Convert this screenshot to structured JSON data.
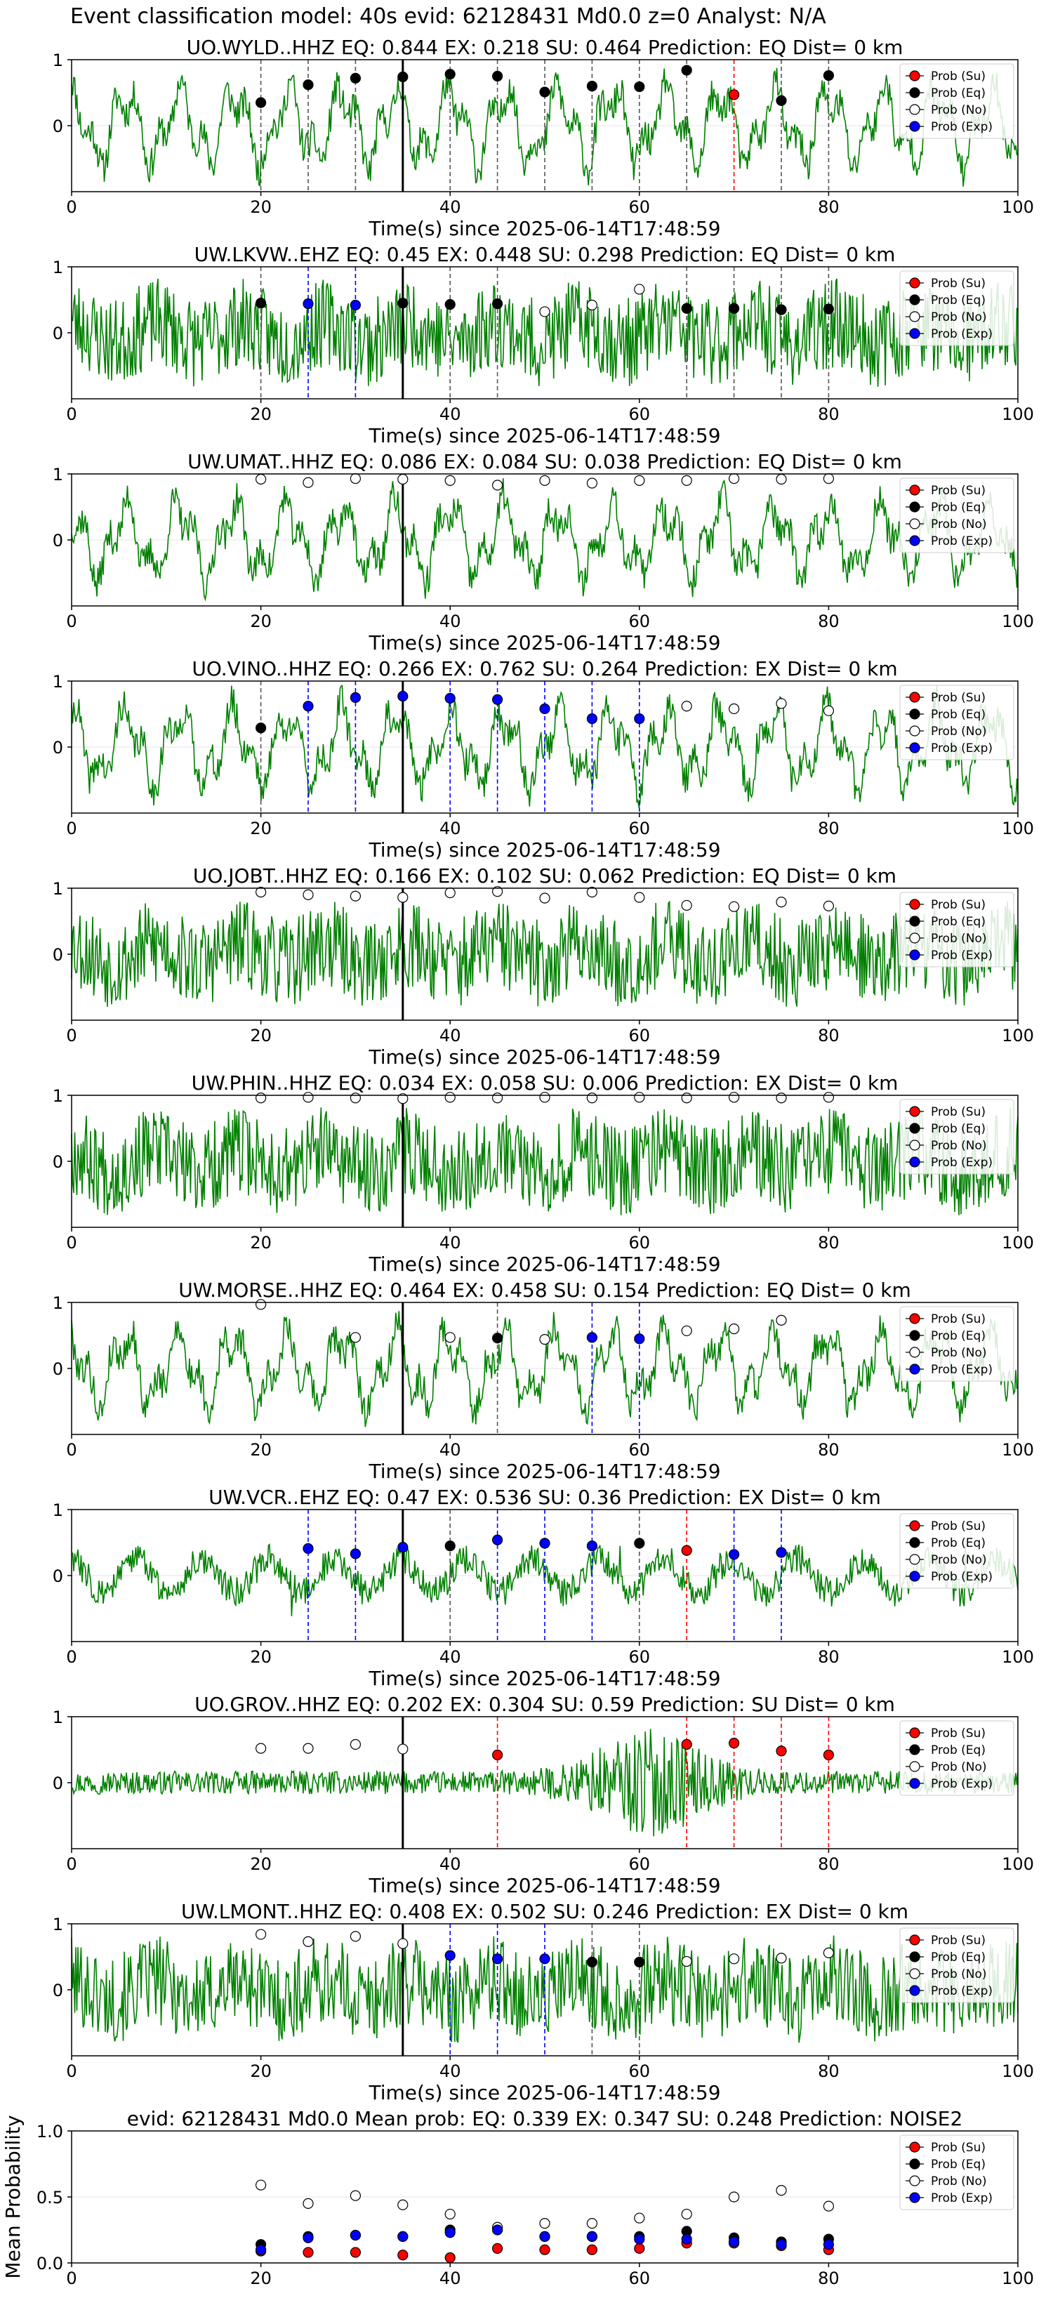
{
  "figure_title": "Event classification model: 40s evid: 62128431 Md0.0 z=0 Analyst: N/A",
  "colors": {
    "trace": "#008000",
    "eq": "#000000",
    "su": "#ff0000",
    "exp": "#0000ff",
    "no": "#ffffff",
    "pick": "#000000"
  },
  "legend": [
    "Prob (Su)",
    "Prob (Eq)",
    "Prob (No)",
    "Prob (Exp)"
  ],
  "chart_data": [
    {
      "type": "scatter",
      "title": "UO.WYLD..HHZ   EQ: 0.844  EX: 0.218  SU: 0.464   Prediction: EQ    Dist= 0 km",
      "xlabel": "Time(s) since 2025-06-14T17:48:59",
      "xlim": [
        0,
        100
      ],
      "ylim": [
        -1,
        1
      ],
      "xticks": [
        "0",
        "20",
        "40",
        "60",
        "80",
        "100"
      ],
      "yticks": [
        "0",
        "1"
      ],
      "pick_time": 35,
      "trace_seed": 11,
      "trace_style": "smooth",
      "points": [
        {
          "x": 20,
          "y": 0.35,
          "cls": "eq"
        },
        {
          "x": 25,
          "y": 0.62,
          "cls": "eq"
        },
        {
          "x": 30,
          "y": 0.72,
          "cls": "eq"
        },
        {
          "x": 35,
          "y": 0.74,
          "cls": "eq"
        },
        {
          "x": 40,
          "y": 0.78,
          "cls": "eq"
        },
        {
          "x": 45,
          "y": 0.75,
          "cls": "eq"
        },
        {
          "x": 50,
          "y": 0.51,
          "cls": "eq"
        },
        {
          "x": 55,
          "y": 0.6,
          "cls": "eq"
        },
        {
          "x": 60,
          "y": 0.59,
          "cls": "eq"
        },
        {
          "x": 65,
          "y": 0.84,
          "cls": "eq"
        },
        {
          "x": 70,
          "y": 0.47,
          "cls": "su"
        },
        {
          "x": 75,
          "y": 0.38,
          "cls": "eq"
        },
        {
          "x": 80,
          "y": 0.76,
          "cls": "eq"
        }
      ]
    },
    {
      "type": "scatter",
      "title": "UW.LKVW..EHZ   EQ: 0.45  EX: 0.448  SU: 0.298   Prediction: EQ    Dist= 0 km",
      "xlabel": "Time(s) since 2025-06-14T17:48:59",
      "xlim": [
        0,
        100
      ],
      "ylim": [
        -1,
        1
      ],
      "xticks": [
        "0",
        "20",
        "40",
        "60",
        "80",
        "100"
      ],
      "yticks": [
        "0",
        "1"
      ],
      "pick_time": 35,
      "trace_seed": 23,
      "trace_style": "noisy",
      "points": [
        {
          "x": 20,
          "y": 0.45,
          "cls": "eq"
        },
        {
          "x": 25,
          "y": 0.44,
          "cls": "exp"
        },
        {
          "x": 30,
          "y": 0.42,
          "cls": "exp"
        },
        {
          "x": 35,
          "y": 0.45,
          "cls": "eq"
        },
        {
          "x": 40,
          "y": 0.43,
          "cls": "eq"
        },
        {
          "x": 45,
          "y": 0.44,
          "cls": "eq"
        },
        {
          "x": 50,
          "y": 0.32,
          "cls": "no"
        },
        {
          "x": 55,
          "y": 0.42,
          "cls": "no"
        },
        {
          "x": 60,
          "y": 0.66,
          "cls": "no"
        },
        {
          "x": 65,
          "y": 0.37,
          "cls": "eq"
        },
        {
          "x": 70,
          "y": 0.37,
          "cls": "eq"
        },
        {
          "x": 75,
          "y": 0.35,
          "cls": "eq"
        },
        {
          "x": 80,
          "y": 0.36,
          "cls": "eq"
        }
      ]
    },
    {
      "type": "scatter",
      "title": "UW.UMAT..HHZ   EQ: 0.086  EX: 0.084  SU: 0.038   Prediction: EQ    Dist= 0 km",
      "xlabel": "Time(s) since 2025-06-14T17:48:59",
      "xlim": [
        0,
        100
      ],
      "ylim": [
        -1,
        1
      ],
      "xticks": [
        "0",
        "20",
        "40",
        "60",
        "80",
        "100"
      ],
      "yticks": [
        "0",
        "1"
      ],
      "pick_time": 35,
      "trace_seed": 37,
      "trace_style": "smooth",
      "points": [
        {
          "x": 20,
          "y": 0.92,
          "cls": "no"
        },
        {
          "x": 25,
          "y": 0.87,
          "cls": "no"
        },
        {
          "x": 30,
          "y": 0.93,
          "cls": "no"
        },
        {
          "x": 35,
          "y": 0.92,
          "cls": "no"
        },
        {
          "x": 40,
          "y": 0.9,
          "cls": "no"
        },
        {
          "x": 45,
          "y": 0.83,
          "cls": "no"
        },
        {
          "x": 50,
          "y": 0.9,
          "cls": "no"
        },
        {
          "x": 55,
          "y": 0.86,
          "cls": "no"
        },
        {
          "x": 60,
          "y": 0.9,
          "cls": "no"
        },
        {
          "x": 65,
          "y": 0.9,
          "cls": "no"
        },
        {
          "x": 70,
          "y": 0.93,
          "cls": "no"
        },
        {
          "x": 75,
          "y": 0.92,
          "cls": "no"
        },
        {
          "x": 80,
          "y": 0.93,
          "cls": "no"
        }
      ]
    },
    {
      "type": "scatter",
      "title": "UO.VINO..HHZ   EQ: 0.266  EX: 0.762  SU: 0.264   Prediction: EX    Dist= 0 km",
      "xlabel": "Time(s) since 2025-06-14T17:48:59",
      "xlim": [
        0,
        100
      ],
      "ylim": [
        -1,
        1
      ],
      "xticks": [
        "0",
        "20",
        "40",
        "60",
        "80",
        "100"
      ],
      "yticks": [
        "0",
        "1"
      ],
      "pick_time": 35,
      "trace_seed": 41,
      "trace_style": "smooth",
      "points": [
        {
          "x": 20,
          "y": 0.29,
          "cls": "eq"
        },
        {
          "x": 25,
          "y": 0.62,
          "cls": "exp"
        },
        {
          "x": 30,
          "y": 0.75,
          "cls": "exp"
        },
        {
          "x": 35,
          "y": 0.77,
          "cls": "exp"
        },
        {
          "x": 40,
          "y": 0.74,
          "cls": "exp"
        },
        {
          "x": 45,
          "y": 0.72,
          "cls": "exp"
        },
        {
          "x": 50,
          "y": 0.58,
          "cls": "exp"
        },
        {
          "x": 55,
          "y": 0.43,
          "cls": "exp"
        },
        {
          "x": 60,
          "y": 0.43,
          "cls": "exp"
        },
        {
          "x": 65,
          "y": 0.62,
          "cls": "no"
        },
        {
          "x": 70,
          "y": 0.58,
          "cls": "no"
        },
        {
          "x": 75,
          "y": 0.66,
          "cls": "no"
        },
        {
          "x": 80,
          "y": 0.55,
          "cls": "no"
        }
      ]
    },
    {
      "type": "scatter",
      "title": "UO.JOBT..HHZ   EQ: 0.166  EX: 0.102  SU: 0.062   Prediction: EQ    Dist= 0 km",
      "xlabel": "Time(s) since 2025-06-14T17:48:59",
      "xlim": [
        0,
        100
      ],
      "ylim": [
        -1,
        1
      ],
      "xticks": [
        "0",
        "20",
        "40",
        "60",
        "80",
        "100"
      ],
      "yticks": [
        "0",
        "1"
      ],
      "pick_time": 35,
      "trace_seed": 53,
      "trace_style": "noisy",
      "points": [
        {
          "x": 20,
          "y": 0.94,
          "cls": "no"
        },
        {
          "x": 25,
          "y": 0.9,
          "cls": "no"
        },
        {
          "x": 30,
          "y": 0.88,
          "cls": "no"
        },
        {
          "x": 35,
          "y": 0.86,
          "cls": "no"
        },
        {
          "x": 40,
          "y": 0.93,
          "cls": "no"
        },
        {
          "x": 45,
          "y": 0.95,
          "cls": "no"
        },
        {
          "x": 50,
          "y": 0.85,
          "cls": "no"
        },
        {
          "x": 55,
          "y": 0.94,
          "cls": "no"
        },
        {
          "x": 60,
          "y": 0.86,
          "cls": "no"
        },
        {
          "x": 65,
          "y": 0.74,
          "cls": "no"
        },
        {
          "x": 70,
          "y": 0.72,
          "cls": "no"
        },
        {
          "x": 75,
          "y": 0.79,
          "cls": "no"
        },
        {
          "x": 80,
          "y": 0.73,
          "cls": "no"
        }
      ]
    },
    {
      "type": "scatter",
      "title": "UW.PHIN..HHZ   EQ: 0.034  EX: 0.058  SU: 0.006   Prediction: EX    Dist= 0 km",
      "xlabel": "Time(s) since 2025-06-14T17:48:59",
      "xlim": [
        0,
        100
      ],
      "ylim": [
        -1,
        1
      ],
      "xticks": [
        "0",
        "20",
        "40",
        "60",
        "80",
        "100"
      ],
      "yticks": [
        "0",
        "1"
      ],
      "pick_time": 35,
      "trace_seed": 67,
      "trace_style": "noisy",
      "points": [
        {
          "x": 20,
          "y": 0.96,
          "cls": "no"
        },
        {
          "x": 25,
          "y": 0.97,
          "cls": "no"
        },
        {
          "x": 30,
          "y": 0.96,
          "cls": "no"
        },
        {
          "x": 35,
          "y": 0.95,
          "cls": "no"
        },
        {
          "x": 40,
          "y": 0.97,
          "cls": "no"
        },
        {
          "x": 45,
          "y": 0.96,
          "cls": "no"
        },
        {
          "x": 50,
          "y": 0.97,
          "cls": "no"
        },
        {
          "x": 55,
          "y": 0.96,
          "cls": "no"
        },
        {
          "x": 60,
          "y": 0.97,
          "cls": "no"
        },
        {
          "x": 65,
          "y": 0.96,
          "cls": "no"
        },
        {
          "x": 70,
          "y": 0.97,
          "cls": "no"
        },
        {
          "x": 75,
          "y": 0.96,
          "cls": "no"
        },
        {
          "x": 80,
          "y": 0.97,
          "cls": "no"
        }
      ]
    },
    {
      "type": "scatter",
      "title": "UW.MORSE..HHZ   EQ: 0.464  EX: 0.458  SU: 0.154   Prediction: EQ    Dist= 0 km",
      "xlabel": "Time(s) since 2025-06-14T17:48:59",
      "xlim": [
        0,
        100
      ],
      "ylim": [
        -1,
        1
      ],
      "xticks": [
        "0",
        "20",
        "40",
        "60",
        "80",
        "100"
      ],
      "yticks": [
        "0",
        "1"
      ],
      "pick_time": 35,
      "trace_seed": 79,
      "trace_style": "smooth",
      "points": [
        {
          "x": 20,
          "y": 0.97,
          "cls": "no"
        },
        {
          "x": 30,
          "y": 0.47,
          "cls": "no"
        },
        {
          "x": 40,
          "y": 0.47,
          "cls": "no"
        },
        {
          "x": 45,
          "y": 0.46,
          "cls": "eq"
        },
        {
          "x": 50,
          "y": 0.44,
          "cls": "no"
        },
        {
          "x": 55,
          "y": 0.47,
          "cls": "exp"
        },
        {
          "x": 60,
          "y": 0.45,
          "cls": "exp"
        },
        {
          "x": 65,
          "y": 0.57,
          "cls": "no"
        },
        {
          "x": 70,
          "y": 0.6,
          "cls": "no"
        },
        {
          "x": 75,
          "y": 0.73,
          "cls": "no"
        }
      ]
    },
    {
      "type": "scatter",
      "title": "UW.VCR..EHZ   EQ: 0.47  EX: 0.536  SU: 0.36   Prediction: EX    Dist= 0 km",
      "xlabel": "Time(s) since 2025-06-14T17:48:59",
      "xlim": [
        0,
        100
      ],
      "ylim": [
        -1,
        1
      ],
      "xticks": [
        "0",
        "20",
        "40",
        "60",
        "80",
        "100"
      ],
      "yticks": [
        "0",
        "1"
      ],
      "pick_time": 35,
      "trace_seed": 83,
      "trace_style": "spiky",
      "points": [
        {
          "x": 25,
          "y": 0.41,
          "cls": "exp"
        },
        {
          "x": 30,
          "y": 0.33,
          "cls": "exp"
        },
        {
          "x": 35,
          "y": 0.43,
          "cls": "exp"
        },
        {
          "x": 40,
          "y": 0.45,
          "cls": "eq"
        },
        {
          "x": 45,
          "y": 0.54,
          "cls": "exp"
        },
        {
          "x": 50,
          "y": 0.49,
          "cls": "exp"
        },
        {
          "x": 55,
          "y": 0.45,
          "cls": "exp"
        },
        {
          "x": 60,
          "y": 0.49,
          "cls": "eq"
        },
        {
          "x": 65,
          "y": 0.38,
          "cls": "su"
        },
        {
          "x": 70,
          "y": 0.32,
          "cls": "exp"
        },
        {
          "x": 75,
          "y": 0.35,
          "cls": "exp"
        }
      ]
    },
    {
      "type": "scatter",
      "title": "UO.GROV..HHZ   EQ: 0.202  EX: 0.304  SU: 0.59   Prediction: SU    Dist= 0 km",
      "xlabel": "Time(s) since 2025-06-14T17:48:59",
      "xlim": [
        0,
        100
      ],
      "ylim": [
        -1,
        1
      ],
      "xticks": [
        "0",
        "20",
        "40",
        "60",
        "80",
        "100"
      ],
      "yticks": [
        "0",
        "1"
      ],
      "pick_time": 35,
      "trace_seed": 97,
      "trace_style": "burst",
      "points": [
        {
          "x": 20,
          "y": 0.52,
          "cls": "no"
        },
        {
          "x": 25,
          "y": 0.52,
          "cls": "no"
        },
        {
          "x": 30,
          "y": 0.58,
          "cls": "no"
        },
        {
          "x": 35,
          "y": 0.51,
          "cls": "no"
        },
        {
          "x": 45,
          "y": 0.42,
          "cls": "su"
        },
        {
          "x": 65,
          "y": 0.58,
          "cls": "su"
        },
        {
          "x": 70,
          "y": 0.6,
          "cls": "su"
        },
        {
          "x": 75,
          "y": 0.48,
          "cls": "su"
        },
        {
          "x": 80,
          "y": 0.42,
          "cls": "su"
        }
      ]
    },
    {
      "type": "scatter",
      "title": "UW.LMONT..HHZ   EQ: 0.408  EX: 0.502  SU: 0.246   Prediction: EX    Dist= 0 km",
      "xlabel": "Time(s) since 2025-06-14T17:48:59",
      "xlim": [
        0,
        100
      ],
      "ylim": [
        -1,
        1
      ],
      "xticks": [
        "0",
        "20",
        "40",
        "60",
        "80",
        "100"
      ],
      "yticks": [
        "0",
        "1"
      ],
      "pick_time": 35,
      "trace_seed": 101,
      "trace_style": "noisy",
      "points": [
        {
          "x": 20,
          "y": 0.84,
          "cls": "no"
        },
        {
          "x": 25,
          "y": 0.73,
          "cls": "no"
        },
        {
          "x": 30,
          "y": 0.81,
          "cls": "no"
        },
        {
          "x": 35,
          "y": 0.7,
          "cls": "no"
        },
        {
          "x": 40,
          "y": 0.52,
          "cls": "exp"
        },
        {
          "x": 45,
          "y": 0.47,
          "cls": "exp"
        },
        {
          "x": 50,
          "y": 0.47,
          "cls": "exp"
        },
        {
          "x": 55,
          "y": 0.42,
          "cls": "eq"
        },
        {
          "x": 60,
          "y": 0.42,
          "cls": "eq"
        },
        {
          "x": 65,
          "y": 0.43,
          "cls": "no"
        },
        {
          "x": 70,
          "y": 0.47,
          "cls": "no"
        },
        {
          "x": 75,
          "y": 0.48,
          "cls": "no"
        },
        {
          "x": 80,
          "y": 0.56,
          "cls": "no"
        }
      ]
    },
    {
      "type": "scatter",
      "title": "evid: 62128431  Md0.0   Mean prob:   EQ: 0.339  EX: 0.347  SU: 0.248   Prediction: NOISE2",
      "ylabel": "Mean Probability",
      "xlim": [
        0,
        100
      ],
      "ylim": [
        0,
        1
      ],
      "xticks": [
        "0",
        "20",
        "40",
        "60",
        "80",
        "100"
      ],
      "yticks": [
        "0.0",
        "0.5",
        "1.0"
      ],
      "series": [
        {
          "name": "Prob (Su)",
          "cls": "su",
          "x": [
            20,
            25,
            30,
            35,
            40,
            45,
            50,
            55,
            60,
            65,
            70,
            75,
            80
          ],
          "y": [
            0.09,
            0.08,
            0.08,
            0.06,
            0.04,
            0.11,
            0.1,
            0.1,
            0.11,
            0.15,
            0.15,
            0.13,
            0.1
          ]
        },
        {
          "name": "Prob (Eq)",
          "cls": "eq",
          "x": [
            20,
            25,
            30,
            35,
            40,
            45,
            50,
            55,
            60,
            65,
            70,
            75,
            80
          ],
          "y": [
            0.14,
            0.2,
            0.21,
            0.2,
            0.25,
            0.26,
            0.2,
            0.2,
            0.2,
            0.24,
            0.19,
            0.16,
            0.18
          ]
        },
        {
          "name": "Prob (No)",
          "cls": "no",
          "x": [
            20,
            25,
            30,
            35,
            40,
            45,
            50,
            55,
            60,
            65,
            70,
            75,
            80
          ],
          "y": [
            0.59,
            0.45,
            0.51,
            0.44,
            0.37,
            0.27,
            0.3,
            0.3,
            0.34,
            0.37,
            0.5,
            0.55,
            0.43
          ]
        },
        {
          "name": "Prob (Exp)",
          "cls": "exp",
          "x": [
            20,
            25,
            30,
            35,
            40,
            45,
            50,
            55,
            60,
            65,
            70,
            75,
            80
          ],
          "y": [
            0.1,
            0.19,
            0.21,
            0.2,
            0.23,
            0.25,
            0.2,
            0.2,
            0.18,
            0.18,
            0.16,
            0.14,
            0.14
          ]
        }
      ]
    }
  ]
}
